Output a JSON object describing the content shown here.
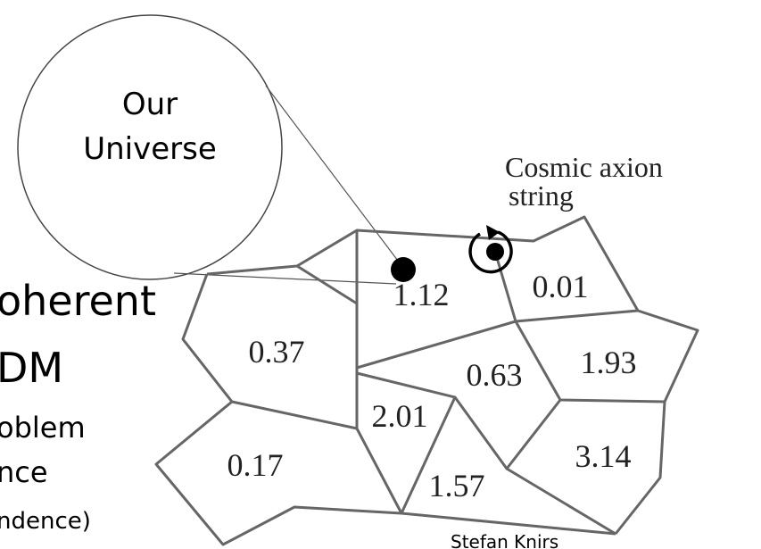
{
  "circle": {
    "lines": [
      "Our",
      "Universe"
    ]
  },
  "string_label": {
    "lines": [
      "Cosmic axion",
      "string"
    ]
  },
  "body_text": [
    "oherent",
    "DM",
    "oblem",
    "nce",
    "ndence)"
  ],
  "cells": [
    "1.12",
    "0.01",
    "0.37",
    "0.63",
    "1.93",
    "2.01",
    "0.17",
    "1.57",
    "3.14"
  ],
  "credit": "Stefan Knirs"
}
